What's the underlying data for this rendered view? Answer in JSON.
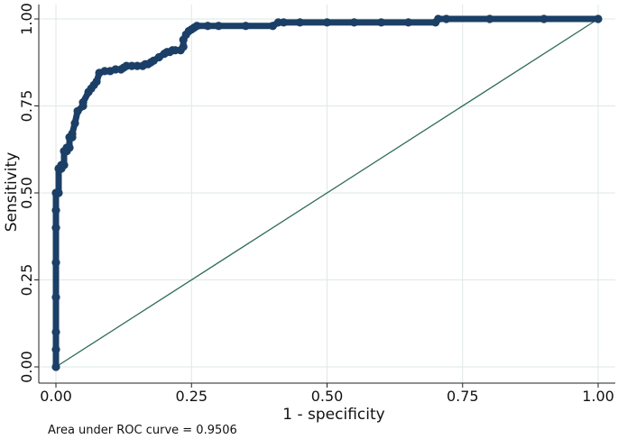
{
  "chart_data": {
    "type": "line",
    "title": "",
    "xlabel": "1 - specificity",
    "ylabel": "Sensitivity",
    "xlim": [
      0,
      1
    ],
    "ylim": [
      0,
      1
    ],
    "grid": true,
    "x_ticks": [
      0,
      0.25,
      0.5,
      0.75,
      1
    ],
    "x_tick_labels": [
      "0.00",
      "0.25",
      "0.50",
      "0.75",
      "1.00"
    ],
    "y_ticks": [
      0,
      0.25,
      0.5,
      0.75,
      1
    ],
    "y_tick_labels": [
      "0.00",
      "0.25",
      "0.50",
      "0.75",
      "1.00"
    ],
    "series": [
      {
        "color": "#1b3f66",
        "style": "markers-connected",
        "x": [
          0,
          0,
          0,
          0,
          0,
          0,
          0,
          0,
          0.005,
          0.005,
          0.01,
          0.01,
          0.015,
          0.015,
          0.02,
          0.02,
          0.025,
          0.025,
          0.03,
          0.03,
          0.035,
          0.04,
          0.05,
          0.05,
          0.06,
          0.065,
          0.07,
          0.075,
          0.08,
          0.09,
          0.1,
          0.11,
          0.12,
          0.125,
          0.13,
          0.14,
          0.15,
          0.16,
          0.165,
          0.17,
          0.175,
          0.18,
          0.19,
          0.2,
          0.205,
          0.21,
          0.215,
          0.22,
          0.23,
          0.235,
          0.235,
          0.24,
          0.245,
          0.25,
          0.255,
          0.26,
          0.28,
          0.3,
          0.35,
          0.4,
          0.41,
          0.42,
          0.45,
          0.5,
          0.55,
          0.6,
          0.65,
          0.7,
          0.705,
          0.72,
          0.8,
          0.9,
          1
        ],
        "y": [
          0,
          0.05,
          0.1,
          0.2,
          0.3,
          0.4,
          0.45,
          0.5,
          0.5,
          0.57,
          0.57,
          0.58,
          0.58,
          0.62,
          0.62,
          0.63,
          0.63,
          0.66,
          0.66,
          0.67,
          0.7,
          0.735,
          0.75,
          0.76,
          0.79,
          0.8,
          0.81,
          0.82,
          0.845,
          0.85,
          0.85,
          0.855,
          0.855,
          0.86,
          0.865,
          0.865,
          0.865,
          0.865,
          0.87,
          0.87,
          0.875,
          0.88,
          0.89,
          0.9,
          0.905,
          0.905,
          0.91,
          0.91,
          0.91,
          0.92,
          0.94,
          0.955,
          0.965,
          0.97,
          0.975,
          0.98,
          0.98,
          0.98,
          0.98,
          0.98,
          0.99,
          0.99,
          0.99,
          0.99,
          0.99,
          0.99,
          0.99,
          0.99,
          1,
          1,
          1,
          1,
          1
        ]
      },
      {
        "color": "#2e6b57",
        "style": "reference-line",
        "x": [
          0,
          1
        ],
        "y": [
          0,
          1
        ]
      }
    ]
  },
  "annotation": "Area under ROC curve = 0.9506"
}
